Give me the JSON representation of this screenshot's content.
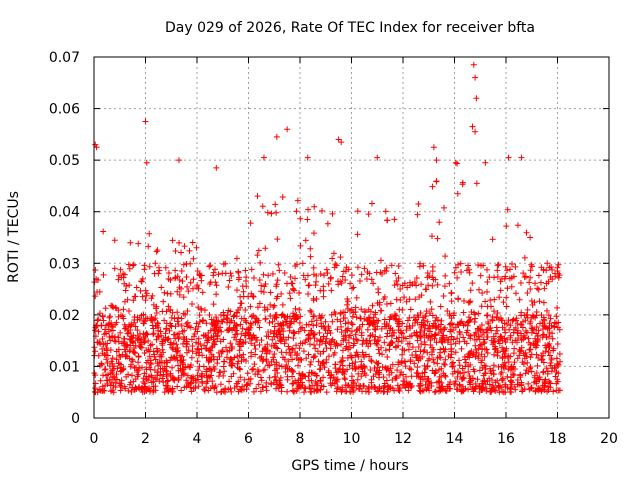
{
  "chart_data": {
    "type": "scatter",
    "title": "Day 029 of 2026, Rate Of TEC Index for receiver bfta",
    "xlabel": "GPS time / hours",
    "ylabel": "ROTI / TECUs",
    "xlim": [
      0,
      20
    ],
    "ylim": [
      0,
      0.07
    ],
    "xticks": [
      0,
      2,
      4,
      6,
      8,
      10,
      12,
      14,
      16,
      18,
      20
    ],
    "xtick_labels": [
      "0",
      "2",
      "4",
      "6",
      "8",
      "10",
      "12",
      "14",
      "16",
      "18",
      "20"
    ],
    "yticks": [
      0,
      0.01,
      0.02,
      0.03,
      0.04,
      0.05,
      0.06,
      0.07
    ],
    "ytick_labels": [
      "0",
      "0.01",
      "0.02",
      "0.03",
      "0.04",
      "0.05",
      "0.06",
      "0.07"
    ],
    "grid": true,
    "marker": "plus",
    "color": "#ff0000",
    "x_data_range": [
      0,
      18.1
    ],
    "typical_band": [
      0.005,
      0.02
    ],
    "notable_points": [
      {
        "x": 0.05,
        "y": 0.053
      },
      {
        "x": 0.1,
        "y": 0.0525
      },
      {
        "x": 2.0,
        "y": 0.0575
      },
      {
        "x": 2.05,
        "y": 0.0495
      },
      {
        "x": 3.3,
        "y": 0.05
      },
      {
        "x": 4.75,
        "y": 0.0485
      },
      {
        "x": 6.6,
        "y": 0.0505
      },
      {
        "x": 7.1,
        "y": 0.0545
      },
      {
        "x": 7.5,
        "y": 0.056
      },
      {
        "x": 8.3,
        "y": 0.0505
      },
      {
        "x": 9.5,
        "y": 0.054
      },
      {
        "x": 9.6,
        "y": 0.0535
      },
      {
        "x": 11.0,
        "y": 0.0505
      },
      {
        "x": 13.2,
        "y": 0.0525
      },
      {
        "x": 13.3,
        "y": 0.05
      },
      {
        "x": 14.05,
        "y": 0.0495
      },
      {
        "x": 14.75,
        "y": 0.0685
      },
      {
        "x": 14.8,
        "y": 0.066
      },
      {
        "x": 14.85,
        "y": 0.062
      },
      {
        "x": 14.7,
        "y": 0.0565
      },
      {
        "x": 14.8,
        "y": 0.0555
      },
      {
        "x": 15.2,
        "y": 0.0495
      },
      {
        "x": 16.1,
        "y": 0.0505
      },
      {
        "x": 16.6,
        "y": 0.0505
      },
      {
        "x": 17.6,
        "y": 0.03
      },
      {
        "x": 18.0,
        "y": 0.0285
      }
    ]
  }
}
